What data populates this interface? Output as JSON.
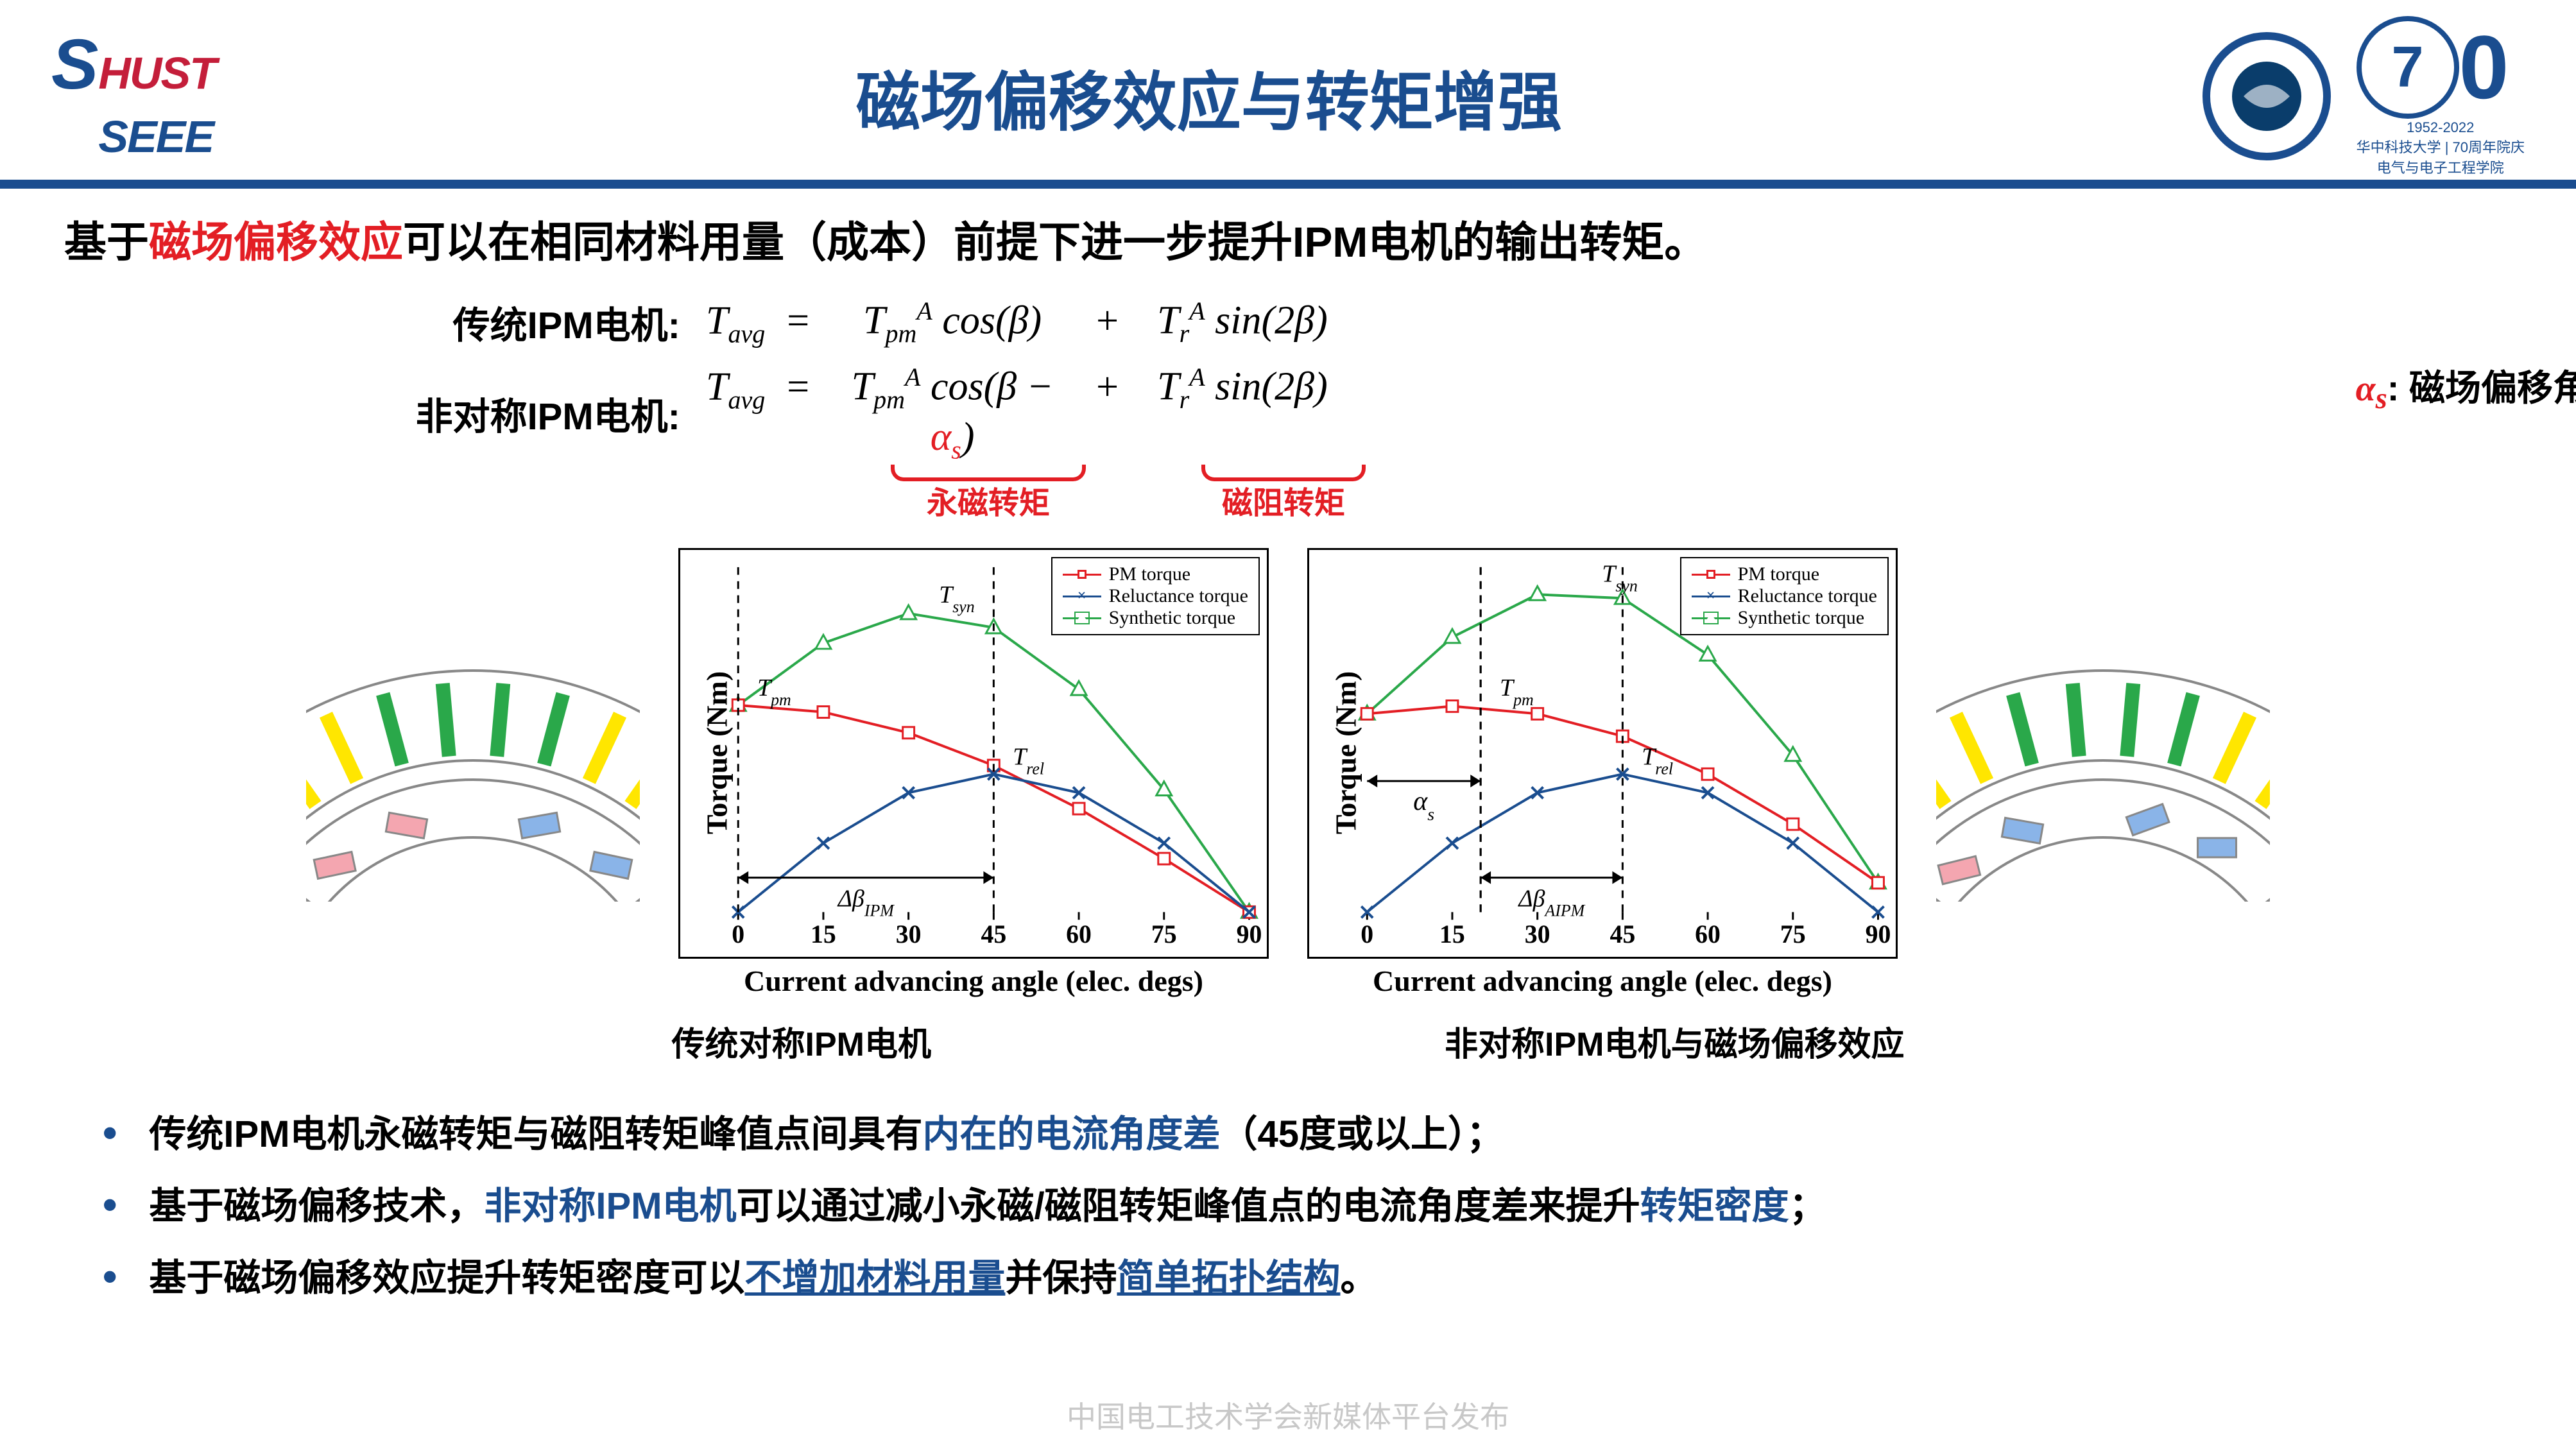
{
  "header": {
    "logo_top": "HUST",
    "logo_bottom": "SEEE",
    "title": "磁场偏移效应与转矩增强",
    "anniv_num": "70",
    "anniv_sub1": "1952-2022",
    "anniv_sub2": "华中科技大学 | 70周年院庆",
    "anniv_sub3": "电气与电子工程学院"
  },
  "intro": {
    "prefix": "基于",
    "red": "磁场偏移效应",
    "suffix": "可以在相同材料用量（成本）前提下进一步提升IPM电机的输出转矩。"
  },
  "eq": {
    "row1_label": "传统IPM电机:",
    "row2_label": "非对称IPM电机:",
    "Tavg": "T",
    "avg_sub": "avg",
    "Tpm": "T",
    "pm_sub": "pm",
    "A": "A",
    "Tr": "T",
    "r_sub": "r",
    "cos": "cos",
    "sin": "sin",
    "beta": "β",
    "two_beta": "2β",
    "alpha_s": "α",
    "alpha_sub": "s",
    "eq_sign": "=",
    "plus": "+",
    "ub1": "永磁转矩",
    "ub2": "磁阻转矩",
    "note_sym": "α",
    "note_sub": "s",
    "note_text": ": 磁场偏移角"
  },
  "chart": {
    "xlabel": "Current advancing angle (elec. degs)",
    "ylabel": "Torque (Nm)",
    "x_ticks": [
      0,
      15,
      30,
      45,
      60,
      75,
      90
    ],
    "legend": {
      "pm": "PM torque",
      "rel": "Reluctance torque",
      "syn": "Synthetic torque"
    },
    "colors": {
      "pm": "#e31e24",
      "rel": "#1a4d8f",
      "syn": "#2aa84a",
      "axis": "#000000",
      "grid": "#000000"
    },
    "marker": {
      "pm": "square",
      "rel": "x",
      "syn": "triangle"
    },
    "annotations_left": {
      "Tsyn": "T",
      "Tsyn_sub": "syn",
      "Tpm": "T",
      "Tpm_sub": "pm",
      "Trel": "T",
      "Trel_sub": "rel",
      "delta": "Δβ",
      "delta_sub": "IPM"
    },
    "annotations_right": {
      "Tsyn": "T",
      "Tsyn_sub": "syn",
      "Tpm": "T",
      "Tpm_sub": "pm",
      "Trel": "T",
      "Trel_sub": "rel",
      "alpha": "α",
      "alpha_sub": "s",
      "delta": "Δβ",
      "delta_sub": "AIPM"
    },
    "left_data": {
      "angle": [
        0,
        15,
        30,
        45,
        60,
        75,
        90
      ],
      "pm": [
        0.6,
        0.58,
        0.52,
        0.425,
        0.3,
        0.155,
        0.0
      ],
      "rel": [
        0.0,
        0.2,
        0.346,
        0.4,
        0.346,
        0.2,
        0.0
      ],
      "syn": [
        0.6,
        0.78,
        0.866,
        0.825,
        0.646,
        0.355,
        0.0
      ],
      "delta_x": [
        0,
        45
      ],
      "tpm_xy": [
        0,
        0.6
      ],
      "trel_xy": [
        45,
        0.4
      ],
      "tsyn_xy": [
        32,
        0.87
      ]
    },
    "right_data": {
      "angle": [
        0,
        15,
        30,
        45,
        60,
        75,
        90
      ],
      "pm": [
        0.575,
        0.597,
        0.575,
        0.51,
        0.4,
        0.255,
        0.085
      ],
      "rel": [
        0.0,
        0.2,
        0.346,
        0.4,
        0.346,
        0.2,
        0.0
      ],
      "syn": [
        0.575,
        0.797,
        0.921,
        0.91,
        0.746,
        0.455,
        0.085
      ],
      "alpha_x": [
        0,
        20
      ],
      "delta_x": [
        20,
        45
      ],
      "tpm_xy": [
        20,
        0.6
      ],
      "trel_xy": [
        45,
        0.4
      ],
      "tsyn_xy": [
        38,
        0.93
      ]
    },
    "ylim": [
      0,
      1.0
    ],
    "xlim": [
      0,
      90
    ],
    "line_width": 4,
    "marker_size": 18
  },
  "motor": {
    "slot_colors_left": [
      "#e31e24",
      "#e31e24",
      "#ffe600",
      "#ffe600",
      "#2aa84a",
      "#2aa84a",
      "#2aa84a",
      "#2aa84a",
      "#ffe600",
      "#ffe600",
      "#e31e24",
      "#e31e24"
    ],
    "slot_colors_right": [
      "#e31e24",
      "#e31e24",
      "#ffe600",
      "#ffe600",
      "#2aa84a",
      "#2aa84a",
      "#2aa84a",
      "#2aa84a",
      "#ffe600",
      "#ffe600",
      "#e31e24",
      "#e31e24"
    ],
    "pm_colors_left": [
      "#f4a6b0",
      "#f4a6b0",
      "#8ab4e8",
      "#8ab4e8"
    ],
    "pm_colors_right": [
      "#f4a6b0",
      "#8ab4e8",
      "#8ab4e8",
      "#8ab4e8"
    ],
    "pm_angles_right_offset": true,
    "outline": "#888888"
  },
  "captions": {
    "left": "传统对称IPM电机",
    "right": "非对称IPM电机与磁场偏移效应"
  },
  "bullets": {
    "b1_a": "传统IPM电机永磁转矩与磁阻转矩峰值点间具有",
    "b1_b": "内在的电流角度差",
    "b1_c": "（45度或以上）；",
    "b2_a": "基于磁场偏移技术，",
    "b2_b": "非对称IPM电机",
    "b2_c": "可以通过减小永磁/磁阻转矩峰值点的电流角度差来提升",
    "b2_d": "转矩密度",
    "b2_e": "；",
    "b3_a": "基于磁场偏移效应提升转矩密度可以",
    "b3_b": "不增加材料用量",
    "b3_c": "并保持",
    "b3_d": "简单拓扑结构",
    "b3_e": "。"
  },
  "watermark": "中国电工技术学会新媒体平台发布"
}
